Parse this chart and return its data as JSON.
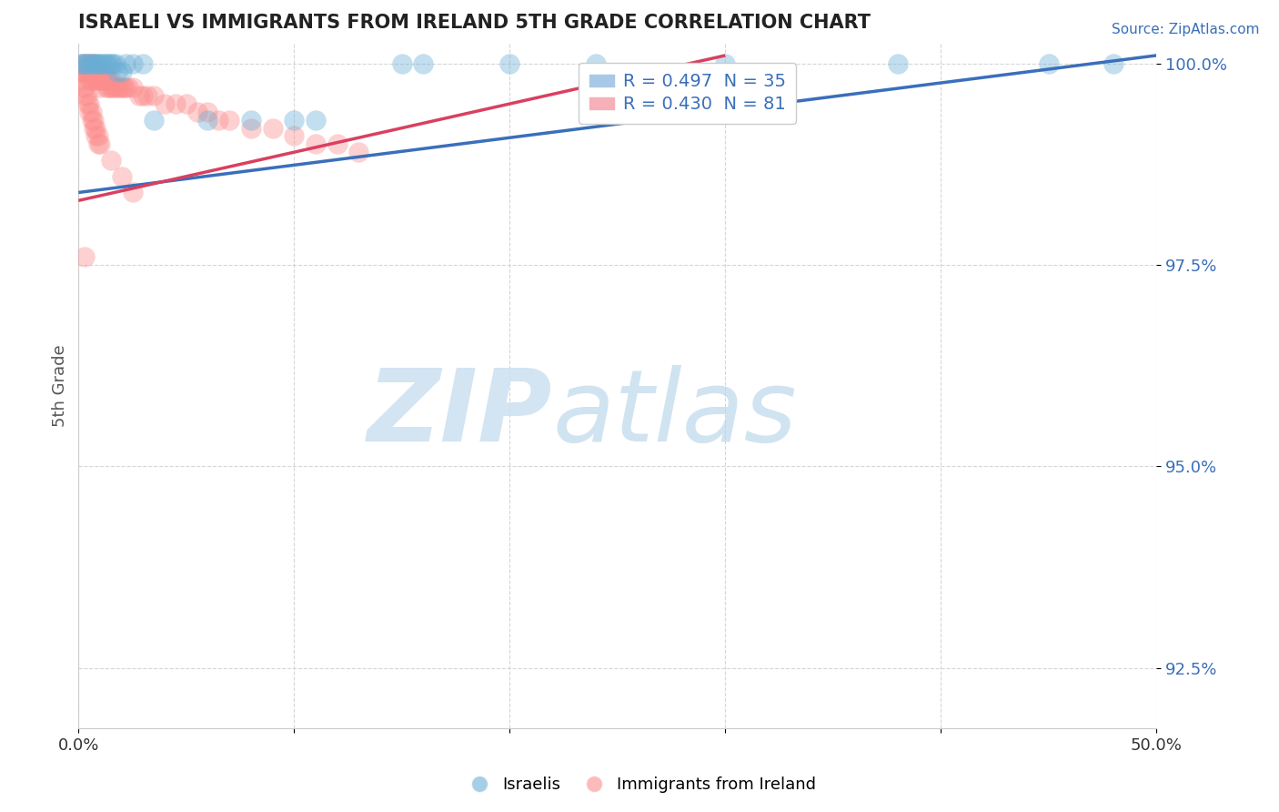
{
  "title": "ISRAELI VS IMMIGRANTS FROM IRELAND 5TH GRADE CORRELATION CHART",
  "source_text": "Source: ZipAtlas.com",
  "ylabel": "5th Grade",
  "xlim": [
    0.0,
    0.5
  ],
  "ylim": [
    0.9175,
    1.0025
  ],
  "xticks": [
    0.0,
    0.1,
    0.2,
    0.3,
    0.4,
    0.5
  ],
  "xticklabels": [
    "0.0%",
    "",
    "",
    "",
    "",
    "50.0%"
  ],
  "yticks": [
    0.925,
    0.95,
    0.975,
    1.0
  ],
  "yticklabels": [
    "92.5%",
    "95.0%",
    "97.5%",
    "100.0%"
  ],
  "israeli_color": "#6baed6",
  "ireland_color": "#fc8d8d",
  "israeli_R": 0.497,
  "israeli_N": 35,
  "ireland_R": 0.43,
  "ireland_N": 81,
  "legend_israelis": "Israelis",
  "legend_ireland": "Immigrants from Ireland",
  "israeli_line_x": [
    0.0,
    0.5
  ],
  "israeli_line_y": [
    0.984,
    1.001
  ],
  "ireland_line_x": [
    0.0,
    0.3
  ],
  "ireland_line_y": [
    0.983,
    1.001
  ],
  "israeli_points": [
    [
      0.001,
      1.0
    ],
    [
      0.002,
      1.0
    ],
    [
      0.003,
      1.0
    ],
    [
      0.004,
      1.0
    ],
    [
      0.005,
      1.0
    ],
    [
      0.006,
      1.0
    ],
    [
      0.007,
      1.0
    ],
    [
      0.008,
      1.0
    ],
    [
      0.009,
      1.0
    ],
    [
      0.01,
      1.0
    ],
    [
      0.011,
      1.0
    ],
    [
      0.012,
      1.0
    ],
    [
      0.013,
      1.0
    ],
    [
      0.014,
      1.0
    ],
    [
      0.015,
      1.0
    ],
    [
      0.016,
      1.0
    ],
    [
      0.017,
      1.0
    ],
    [
      0.018,
      0.999
    ],
    [
      0.02,
      0.999
    ],
    [
      0.022,
      1.0
    ],
    [
      0.025,
      1.0
    ],
    [
      0.03,
      1.0
    ],
    [
      0.035,
      0.993
    ],
    [
      0.06,
      0.993
    ],
    [
      0.08,
      0.993
    ],
    [
      0.1,
      0.993
    ],
    [
      0.11,
      0.993
    ],
    [
      0.15,
      1.0
    ],
    [
      0.16,
      1.0
    ],
    [
      0.2,
      1.0
    ],
    [
      0.24,
      1.0
    ],
    [
      0.3,
      1.0
    ],
    [
      0.38,
      1.0
    ],
    [
      0.45,
      1.0
    ],
    [
      0.48,
      1.0
    ]
  ],
  "ireland_points": [
    [
      0.001,
      0.999
    ],
    [
      0.002,
      1.0
    ],
    [
      0.002,
      0.999
    ],
    [
      0.003,
      1.0
    ],
    [
      0.003,
      0.999
    ],
    [
      0.004,
      1.0
    ],
    [
      0.004,
      0.999
    ],
    [
      0.005,
      1.0
    ],
    [
      0.005,
      0.999
    ],
    [
      0.005,
      0.998
    ],
    [
      0.006,
      1.0
    ],
    [
      0.006,
      0.999
    ],
    [
      0.006,
      0.998
    ],
    [
      0.007,
      1.0
    ],
    [
      0.007,
      0.999
    ],
    [
      0.007,
      0.998
    ],
    [
      0.008,
      1.0
    ],
    [
      0.008,
      0.999
    ],
    [
      0.008,
      0.998
    ],
    [
      0.009,
      0.999
    ],
    [
      0.009,
      0.998
    ],
    [
      0.01,
      0.999
    ],
    [
      0.01,
      0.998
    ],
    [
      0.01,
      0.997
    ],
    [
      0.011,
      0.999
    ],
    [
      0.011,
      0.998
    ],
    [
      0.012,
      0.999
    ],
    [
      0.012,
      0.998
    ],
    [
      0.013,
      0.998
    ],
    [
      0.013,
      0.997
    ],
    [
      0.014,
      0.998
    ],
    [
      0.014,
      0.997
    ],
    [
      0.015,
      0.998
    ],
    [
      0.015,
      0.997
    ],
    [
      0.016,
      0.997
    ],
    [
      0.017,
      0.997
    ],
    [
      0.018,
      0.997
    ],
    [
      0.019,
      0.997
    ],
    [
      0.02,
      0.997
    ],
    [
      0.021,
      0.997
    ],
    [
      0.022,
      0.997
    ],
    [
      0.023,
      0.997
    ],
    [
      0.025,
      0.997
    ],
    [
      0.028,
      0.996
    ],
    [
      0.03,
      0.996
    ],
    [
      0.032,
      0.996
    ],
    [
      0.035,
      0.996
    ],
    [
      0.04,
      0.995
    ],
    [
      0.045,
      0.995
    ],
    [
      0.05,
      0.995
    ],
    [
      0.055,
      0.994
    ],
    [
      0.06,
      0.994
    ],
    [
      0.065,
      0.993
    ],
    [
      0.07,
      0.993
    ],
    [
      0.08,
      0.992
    ],
    [
      0.09,
      0.992
    ],
    [
      0.1,
      0.991
    ],
    [
      0.11,
      0.99
    ],
    [
      0.12,
      0.99
    ],
    [
      0.13,
      0.989
    ],
    [
      0.001,
      0.998
    ],
    [
      0.002,
      0.997
    ],
    [
      0.003,
      0.997
    ],
    [
      0.003,
      0.996
    ],
    [
      0.004,
      0.996
    ],
    [
      0.004,
      0.995
    ],
    [
      0.005,
      0.995
    ],
    [
      0.005,
      0.994
    ],
    [
      0.006,
      0.994
    ],
    [
      0.006,
      0.993
    ],
    [
      0.007,
      0.993
    ],
    [
      0.007,
      0.992
    ],
    [
      0.008,
      0.992
    ],
    [
      0.008,
      0.991
    ],
    [
      0.009,
      0.991
    ],
    [
      0.009,
      0.99
    ],
    [
      0.01,
      0.99
    ],
    [
      0.015,
      0.988
    ],
    [
      0.02,
      0.986
    ],
    [
      0.025,
      0.984
    ],
    [
      0.003,
      0.976
    ]
  ]
}
